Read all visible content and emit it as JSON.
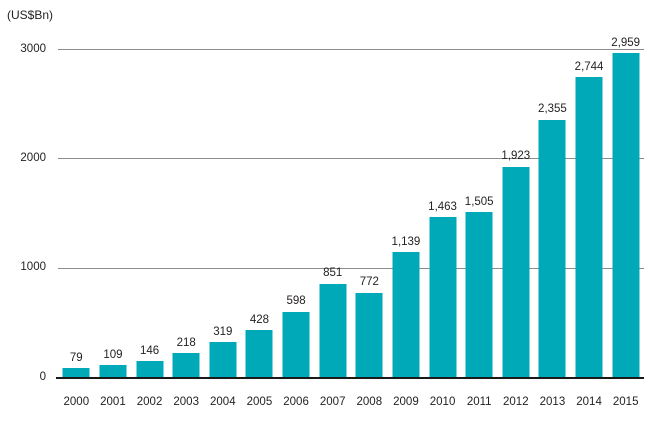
{
  "units_label": "(US$Bn)",
  "colors": {
    "bar": "#00A9B8",
    "gridline": "#8c8c8c",
    "axis_line": "#1a1a1a",
    "text": "#231F20",
    "background": "#ffffff"
  },
  "chart_data": {
    "type": "bar",
    "title": "(US$Bn)",
    "xlabel": "",
    "ylabel": "(US$Bn)",
    "categories": [
      "2000",
      "2001",
      "2002",
      "2003",
      "2004",
      "2005",
      "2006",
      "2007",
      "2008",
      "2009",
      "2010",
      "2011",
      "2012",
      "2013",
      "2014",
      "2015"
    ],
    "values": [
      79,
      109,
      146,
      218,
      319,
      428,
      598,
      851,
      772,
      1139,
      1463,
      1505,
      1923,
      2355,
      2744,
      2959
    ],
    "value_labels": [
      "79",
      "109",
      "146",
      "218",
      "319",
      "428",
      "598",
      "851",
      "772",
      "1,139",
      "1,463",
      "1,505",
      "1,923",
      "2,355",
      "2,744",
      "2,959"
    ],
    "ylim": [
      0,
      3000
    ],
    "yticks": [
      0,
      1000,
      2000,
      3000
    ],
    "ytick_labels": [
      "0",
      "1000",
      "2000",
      "3000"
    ],
    "grid": true,
    "gridlines_at": [
      1000,
      2000,
      3000
    ],
    "legend": "none",
    "bar_color": "#00A9B8"
  }
}
